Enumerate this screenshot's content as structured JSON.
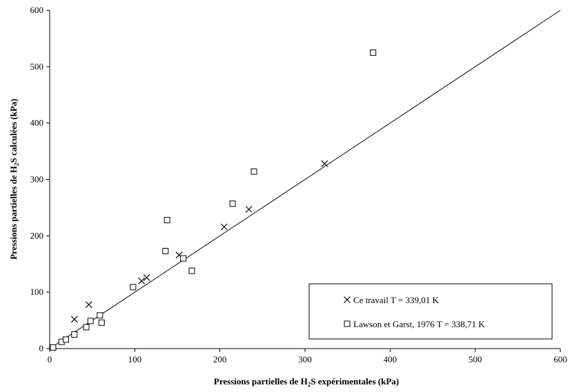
{
  "chart_data": {
    "type": "scatter",
    "title": "",
    "xlabel_parts": [
      "Pressions partielles de H",
      "2",
      "S expérimentales (kPa)"
    ],
    "ylabel_parts": [
      "Pressions partielles de H",
      "2",
      "S calculées (kPa)"
    ],
    "xlim": [
      0,
      600
    ],
    "ylim": [
      0,
      600
    ],
    "xticks": [
      "0",
      "100",
      "200",
      "300",
      "400",
      "500",
      "600"
    ],
    "yticks": [
      "0",
      "100",
      "200",
      "300",
      "400",
      "500",
      "600"
    ],
    "grid": false,
    "legend_position": "bottom-right",
    "diagonal_line": [
      [
        0,
        0
      ],
      [
        600,
        600
      ]
    ],
    "series": [
      {
        "name": "Ce travail  T = 339,01 K",
        "marker": "x",
        "points": [
          [
            29,
            52
          ],
          [
            46,
            78
          ],
          [
            108,
            120
          ],
          [
            114,
            126
          ],
          [
            152,
            166
          ],
          [
            205,
            216
          ],
          [
            234,
            247
          ],
          [
            323,
            328
          ]
        ]
      },
      {
        "name": "Lawson et Garst, 1976  T = 338,71 K",
        "marker": "square",
        "points": [
          [
            4,
            2
          ],
          [
            14,
            12
          ],
          [
            19,
            16
          ],
          [
            29,
            25
          ],
          [
            43,
            38
          ],
          [
            48,
            49
          ],
          [
            59,
            59
          ],
          [
            61,
            46
          ],
          [
            98,
            109
          ],
          [
            136,
            173
          ],
          [
            138,
            228
          ],
          [
            157,
            160
          ],
          [
            167,
            138
          ],
          [
            215,
            257
          ],
          [
            240,
            314
          ],
          [
            380,
            525
          ]
        ]
      }
    ]
  }
}
